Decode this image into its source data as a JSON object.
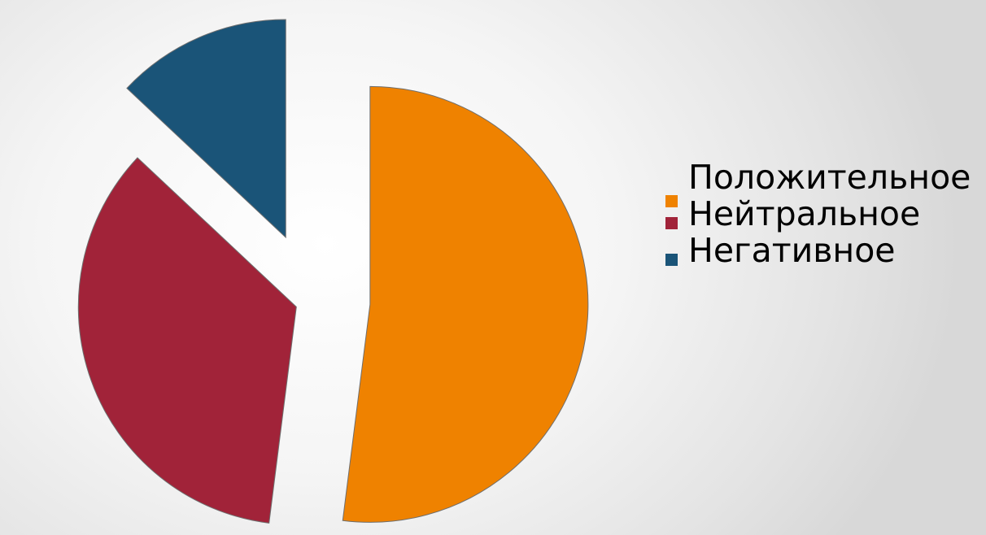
{
  "chart_data": {
    "type": "pie",
    "exploded": true,
    "slices": [
      {
        "label": "Положительное",
        "value": 52,
        "color": "#ef8200"
      },
      {
        "label": "Нейтральное",
        "value": 35,
        "color": "#a12339"
      },
      {
        "label": "Негативное",
        "value": 13,
        "color": "#1a5478"
      }
    ],
    "legend_position": "right"
  }
}
